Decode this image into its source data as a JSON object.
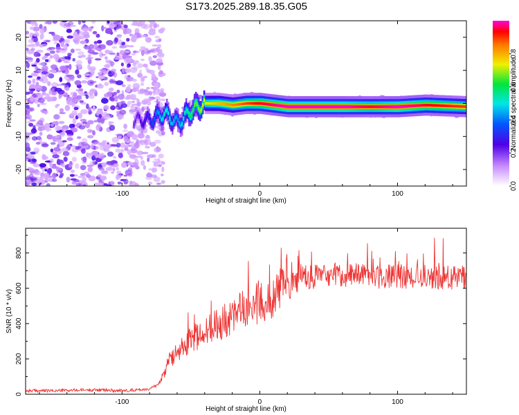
{
  "title": "S173.2025.289.18.35.G05",
  "chart_data": [
    {
      "type": "heatmap",
      "title": "S173.2025.289.18.35.G05",
      "xlabel": "Height of straight line (km)",
      "ylabel": "Frequency (Hz)",
      "xlim": [
        -170,
        150
      ],
      "ylim": [
        -25,
        25
      ],
      "xticks": [
        -100,
        0,
        100
      ],
      "yticks": [
        -20,
        -10,
        0,
        10,
        20
      ],
      "colorbar": {
        "label": "Normalized spectral amplitude",
        "range": [
          0,
          1
        ],
        "ticks": [
          0.0,
          0.2,
          0.4,
          0.6,
          0.8
        ]
      },
      "description_series": [
        {
          "name": "noise_region_x",
          "values": [
            -170,
            -80
          ]
        },
        {
          "name": "ridge_x",
          "values": [
            -90,
            -80,
            -70,
            -60,
            -50,
            -40,
            -30,
            -20,
            -10,
            0,
            20,
            40,
            60,
            80,
            100,
            120,
            150
          ]
        },
        {
          "name": "ridge_freq",
          "values": [
            -5,
            -5,
            -3,
            -6,
            -2,
            0,
            0,
            -0.5,
            0,
            0,
            -1,
            -1,
            -1,
            -1,
            -1,
            -0.5,
            -1
          ]
        },
        {
          "name": "ridge_amplitude",
          "values": [
            0.2,
            0.3,
            0.5,
            0.4,
            0.6,
            0.7,
            0.75,
            0.8,
            0.85,
            0.9,
            0.95,
            0.95,
            0.95,
            0.9,
            0.95,
            0.9,
            0.85
          ]
        }
      ]
    },
    {
      "type": "line",
      "xlabel": "Height of straight line (km)",
      "ylabel": "SNR (10 * v/v)",
      "xlim": [
        -170,
        150
      ],
      "ylim": [
        0,
        940
      ],
      "xticks": [
        -100,
        0,
        100
      ],
      "yticks": [
        0,
        200,
        400,
        600,
        800
      ],
      "series": [
        {
          "name": "SNR",
          "color": "#ee3333",
          "x": [
            -170,
            -150,
            -120,
            -100,
            -80,
            -75,
            -70,
            -65,
            -60,
            -50,
            -40,
            -30,
            -20,
            -10,
            0,
            10,
            20,
            25,
            30,
            40,
            60,
            80,
            100,
            120,
            140,
            150
          ],
          "y": [
            20,
            20,
            25,
            20,
            30,
            50,
            100,
            180,
            220,
            280,
            320,
            360,
            400,
            430,
            470,
            520,
            580,
            620,
            660,
            660,
            670,
            660,
            660,
            660,
            650,
            660
          ]
        }
      ]
    }
  ]
}
